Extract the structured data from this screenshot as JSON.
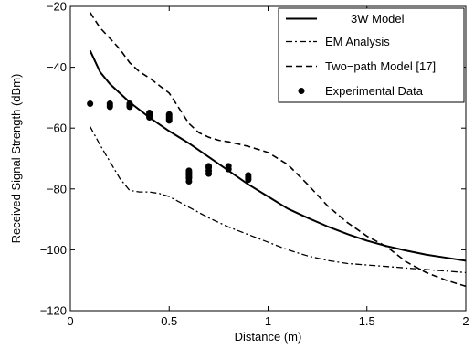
{
  "chart_data": {
    "type": "line",
    "title": "",
    "xlabel": "Distance (m)",
    "ylabel": "Received Signal Strength (dBm)",
    "xlim": [
      0,
      2
    ],
    "ylim": [
      -120,
      -20
    ],
    "xticks": [
      0,
      0.5,
      1,
      1.5,
      2
    ],
    "yticks": [
      -120,
      -100,
      -80,
      -60,
      -40,
      -20
    ],
    "xtick_labels": [
      "0",
      "0.5",
      "1",
      "1.5",
      "2"
    ],
    "ytick_labels": [
      "−120",
      "−100",
      "−80",
      "−60",
      "−40",
      "−20"
    ],
    "grid": false,
    "legend_position": "top-right",
    "series": [
      {
        "name": "3W Model",
        "style": "solid",
        "color": "#000000",
        "x": [
          0.1,
          0.15,
          0.2,
          0.25,
          0.3,
          0.4,
          0.5,
          0.6,
          0.7,
          0.8,
          0.9,
          1.0,
          1.1,
          1.2,
          1.3,
          1.4,
          1.5,
          1.6,
          1.7,
          1.8,
          1.9,
          2.0
        ],
        "y": [
          -34.5,
          -41.5,
          -45.5,
          -48.5,
          -51.5,
          -56.5,
          -61.0,
          -65.0,
          -69.5,
          -74.0,
          -78.5,
          -82.5,
          -86.5,
          -89.5,
          -92.3,
          -94.8,
          -97.0,
          -98.8,
          -100.3,
          -101.6,
          -102.6,
          -103.6
        ]
      },
      {
        "name": "EM Analysis",
        "style": "dashdot",
        "color": "#000000",
        "x": [
          0.1,
          0.15,
          0.2,
          0.25,
          0.3,
          0.35,
          0.4,
          0.45,
          0.5,
          0.6,
          0.7,
          0.8,
          0.9,
          1.0,
          1.1,
          1.2,
          1.3,
          1.4,
          1.5,
          1.6,
          1.7,
          1.8,
          1.9,
          2.0
        ],
        "y": [
          -59.5,
          -65.5,
          -71.0,
          -76.5,
          -80.5,
          -81.0,
          -81.0,
          -81.5,
          -82.5,
          -86.0,
          -89.5,
          -92.5,
          -95.0,
          -97.5,
          -100.0,
          -102.0,
          -103.5,
          -104.5,
          -105.0,
          -105.5,
          -106.0,
          -106.5,
          -107.0,
          -107.5
        ]
      },
      {
        "name": "Two−path Model [17]",
        "style": "dashed",
        "color": "#000000",
        "x": [
          0.1,
          0.15,
          0.2,
          0.25,
          0.3,
          0.35,
          0.4,
          0.45,
          0.5,
          0.55,
          0.6,
          0.65,
          0.7,
          0.75,
          0.8,
          0.9,
          1.0,
          1.1,
          1.2,
          1.3,
          1.4,
          1.5,
          1.6,
          1.7,
          1.8,
          1.9,
          2.0
        ],
        "y": [
          -22.0,
          -27.0,
          -30.5,
          -34.0,
          -38.5,
          -41.5,
          -43.5,
          -46.0,
          -48.5,
          -53.5,
          -58.5,
          -61.5,
          -63.0,
          -64.0,
          -64.5,
          -66.0,
          -68.0,
          -72.0,
          -78.5,
          -85.5,
          -91.0,
          -95.5,
          -99.0,
          -104.0,
          -107.5,
          -110.0,
          -112.0
        ]
      },
      {
        "name": "Experimental Data",
        "style": "markers",
        "color": "#000000",
        "x": [
          0.1,
          0.2,
          0.2,
          0.2,
          0.3,
          0.3,
          0.3,
          0.4,
          0.4,
          0.4,
          0.4,
          0.5,
          0.5,
          0.5,
          0.5,
          0.5,
          0.6,
          0.6,
          0.6,
          0.6,
          0.6,
          0.6,
          0.6,
          0.7,
          0.7,
          0.7,
          0.7,
          0.8,
          0.8,
          0.9,
          0.9,
          0.9,
          0.9
        ],
        "y": [
          -52.0,
          -52.0,
          -52.5,
          -53.0,
          -52.0,
          -52.5,
          -53.0,
          -55.0,
          -55.5,
          -56.0,
          -56.5,
          -55.5,
          -56.0,
          -56.5,
          -57.0,
          -57.5,
          -74.0,
          -74.5,
          -75.0,
          -75.5,
          -76.0,
          -76.5,
          -77.5,
          -72.5,
          -73.0,
          -74.0,
          -75.0,
          -72.5,
          -73.5,
          -75.5,
          -76.0,
          -76.5,
          -77.0
        ]
      }
    ]
  }
}
